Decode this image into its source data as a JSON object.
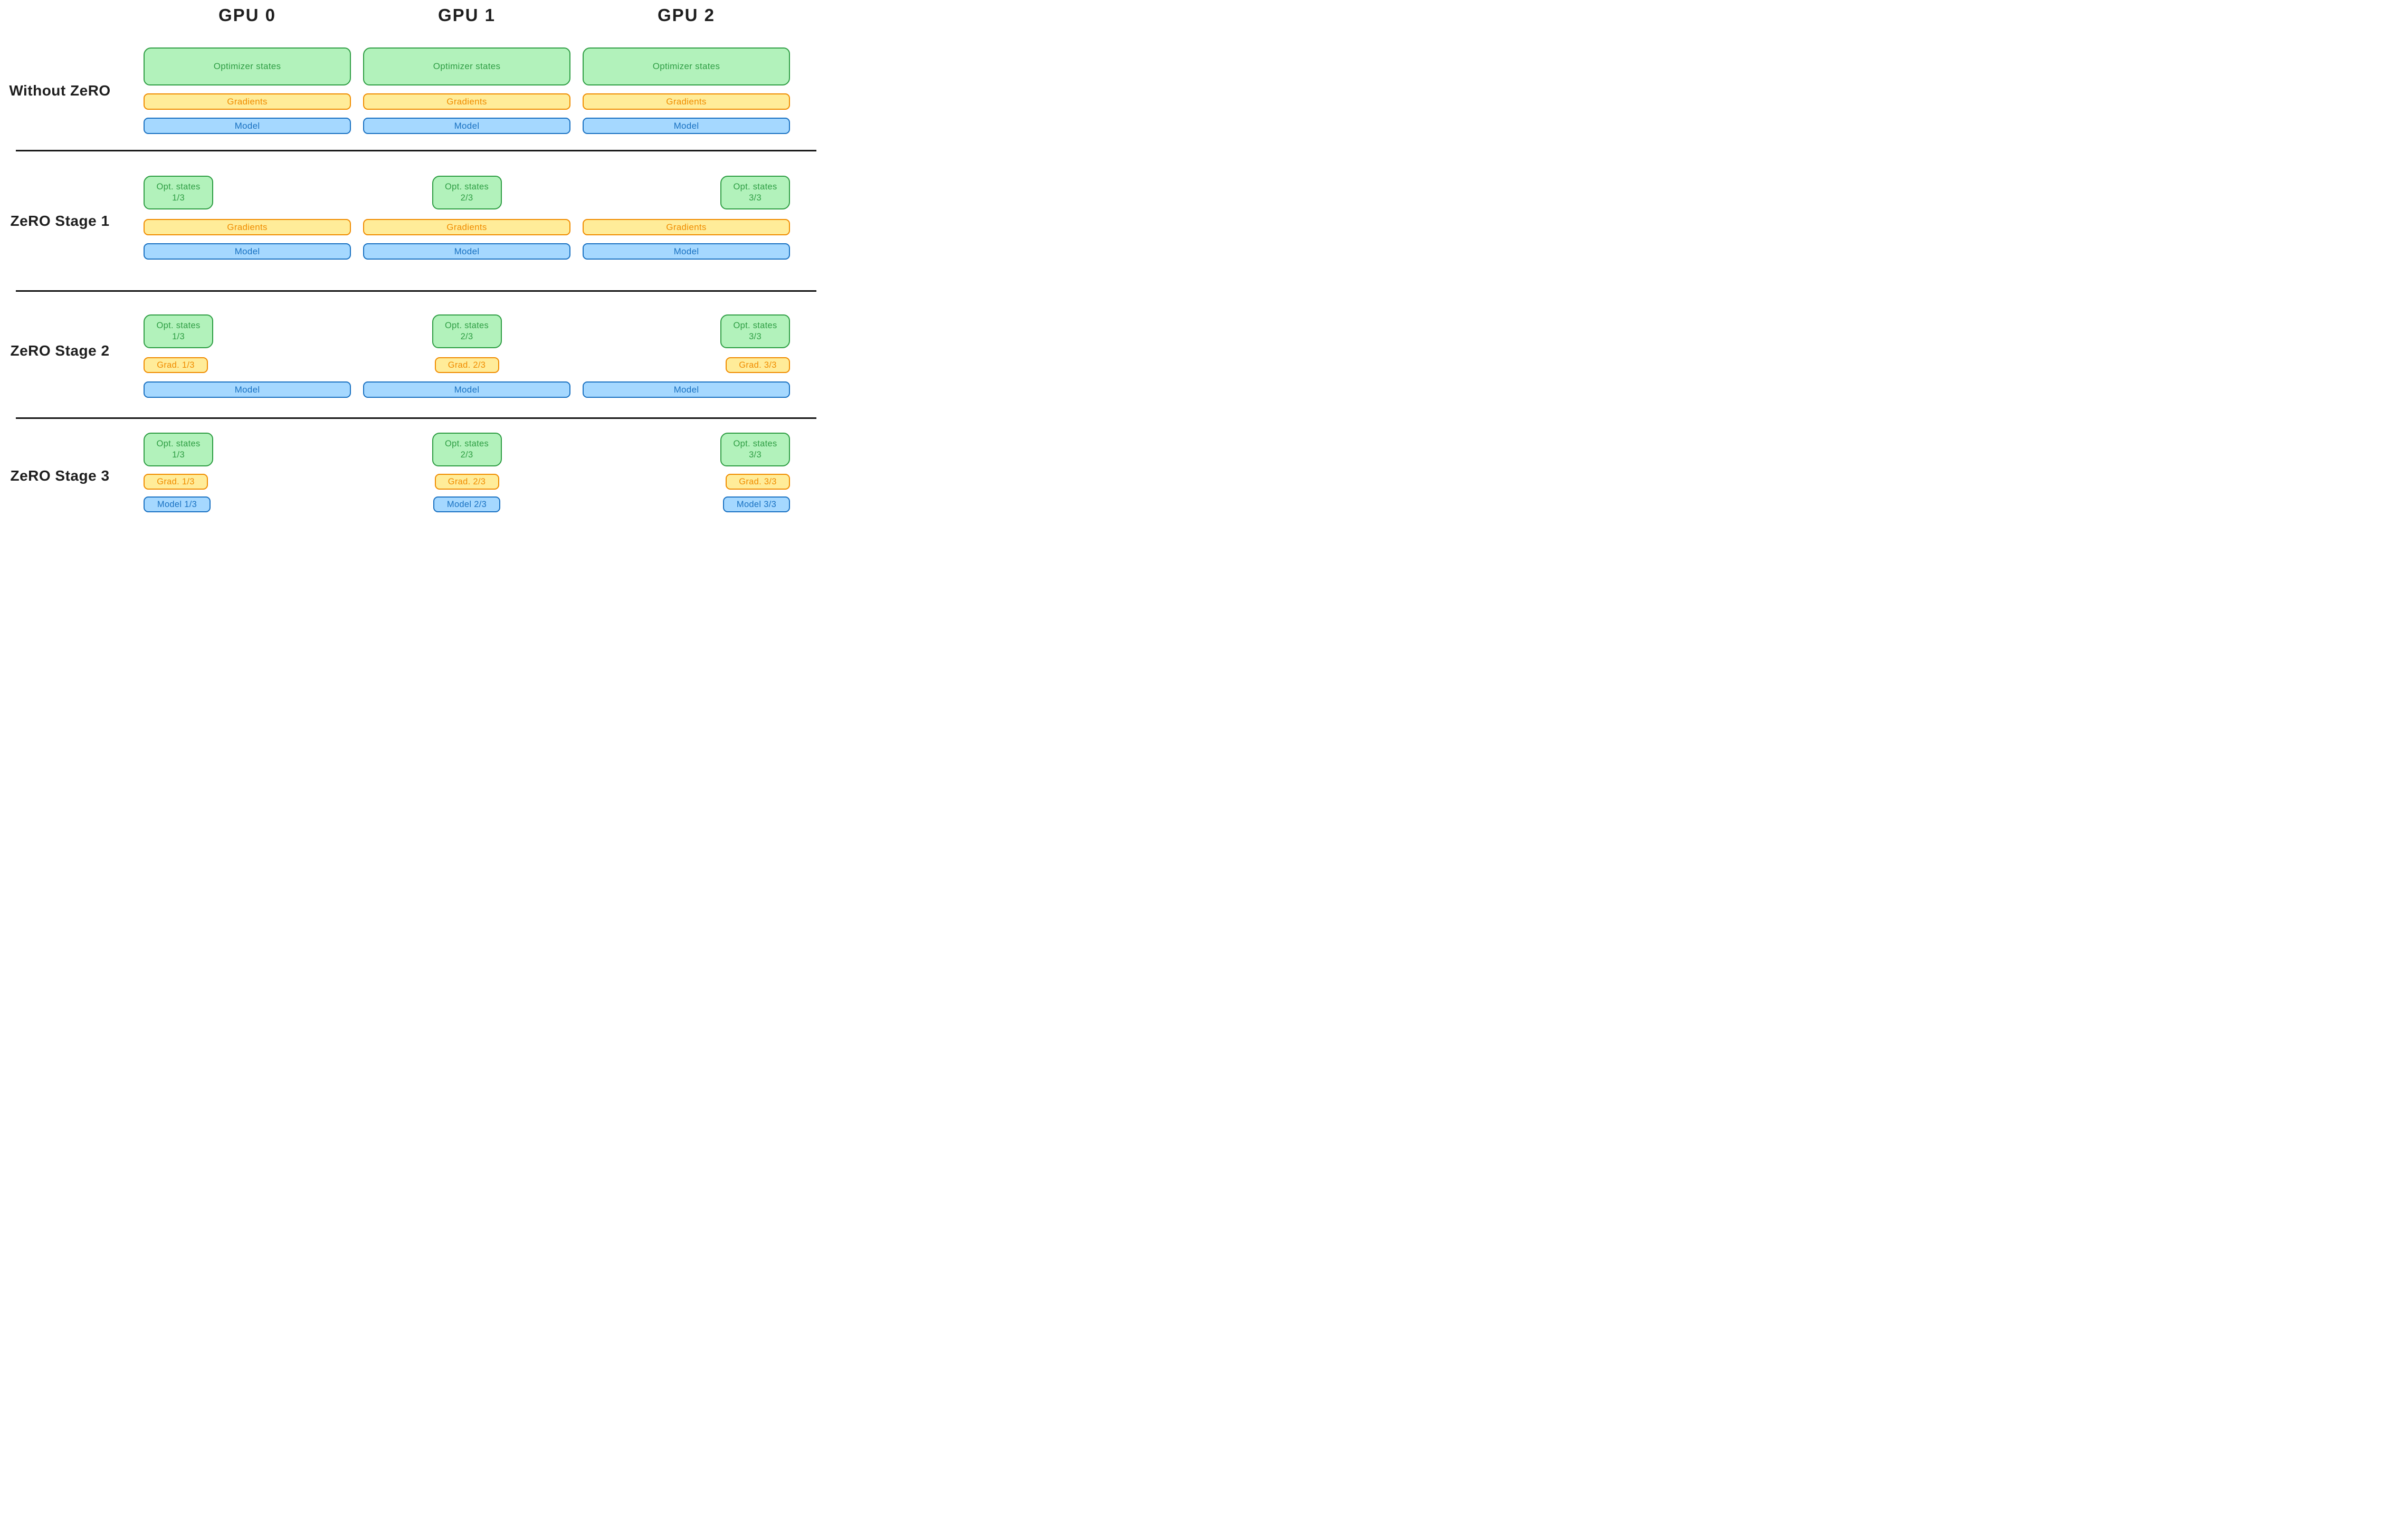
{
  "palette": {
    "optimizer_fill": "#b2f2bb",
    "optimizer_stroke": "#2f9e44",
    "gradient_fill": "#ffec99",
    "gradient_stroke": "#f08c00",
    "model_fill": "#a5d8ff",
    "model_stroke": "#1971c2",
    "ink": "#1e1e1e",
    "background": "#ffffff"
  },
  "columns": [
    "GPU 0",
    "GPU 1",
    "GPU 2"
  ],
  "rows": [
    {
      "label": "Without ZeRO",
      "cells": [
        {
          "boxes": [
            {
              "text": "Optimizer states"
            },
            {
              "text": "Gradients"
            },
            {
              "text": "Model"
            }
          ]
        },
        {
          "boxes": [
            {
              "text": "Optimizer states"
            },
            {
              "text": "Gradients"
            },
            {
              "text": "Model"
            }
          ]
        },
        {
          "boxes": [
            {
              "text": "Optimizer states"
            },
            {
              "text": "Gradients"
            },
            {
              "text": "Model"
            }
          ]
        }
      ]
    },
    {
      "label": "ZeRO Stage 1",
      "cells": [
        {
          "boxes": [
            {
              "text": "Opt. states",
              "fraction": "1/3"
            },
            {
              "text": "Gradients"
            },
            {
              "text": "Model"
            }
          ]
        },
        {
          "boxes": [
            {
              "text": "Opt. states",
              "fraction": "2/3"
            },
            {
              "text": "Gradients"
            },
            {
              "text": "Model"
            }
          ]
        },
        {
          "boxes": [
            {
              "text": "Opt. states",
              "fraction": "3/3"
            },
            {
              "text": "Gradients"
            },
            {
              "text": "Model"
            }
          ]
        }
      ]
    },
    {
      "label": "ZeRO Stage 2",
      "cells": [
        {
          "boxes": [
            {
              "text": "Opt. states",
              "fraction": "1/3"
            },
            {
              "text": "Grad. 1/3"
            },
            {
              "text": "Model"
            }
          ]
        },
        {
          "boxes": [
            {
              "text": "Opt. states",
              "fraction": "2/3"
            },
            {
              "text": "Grad. 2/3"
            },
            {
              "text": "Model"
            }
          ]
        },
        {
          "boxes": [
            {
              "text": "Opt. states",
              "fraction": "3/3"
            },
            {
              "text": "Grad. 3/3"
            },
            {
              "text": "Model"
            }
          ]
        }
      ]
    },
    {
      "label": "ZeRO Stage 3",
      "cells": [
        {
          "boxes": [
            {
              "text": "Opt. states",
              "fraction": "1/3"
            },
            {
              "text": "Grad. 1/3"
            },
            {
              "text": "Model 1/3"
            }
          ]
        },
        {
          "boxes": [
            {
              "text": "Opt. states",
              "fraction": "2/3"
            },
            {
              "text": "Grad. 2/3"
            },
            {
              "text": "Model 2/3"
            }
          ]
        },
        {
          "boxes": [
            {
              "text": "Opt. states",
              "fraction": "3/3"
            },
            {
              "text": "Grad. 3/3"
            },
            {
              "text": "Model 3/3"
            }
          ]
        }
      ]
    }
  ]
}
